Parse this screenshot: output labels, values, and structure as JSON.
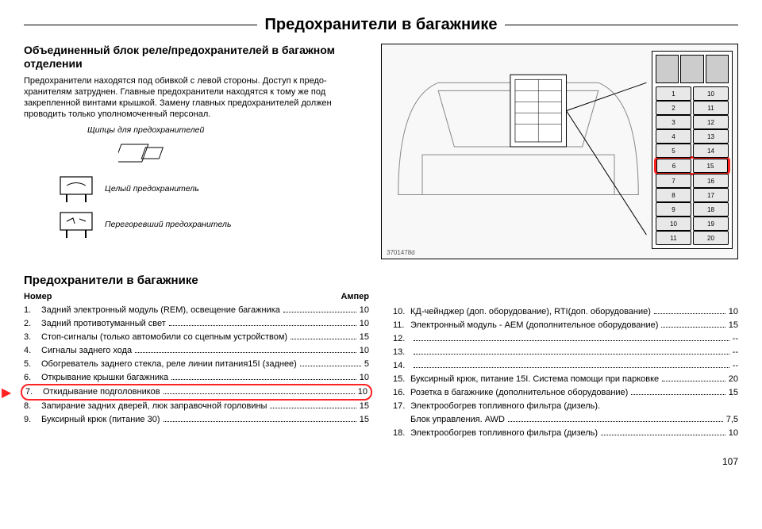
{
  "page": {
    "title": "Предохранители в багажнике",
    "number": "107"
  },
  "section1": {
    "title": "Объединенный блок реле/предохранителей в багажном отделении",
    "intro": "Предохранители находятся под обивкой с левой стороны. Доступ к предо-хранителям затруднен. Главные предохранители находятся к тому же под закрепленной винтами крышкой. Замену главных предохранителей должен проводить только уполномоченный персонал.",
    "label_tweezers": "Щипцы для предохранителей",
    "label_intact": "Целый предохранитель",
    "label_blown": "Перегоревший предохранитель",
    "diagram_caption": "3701478d"
  },
  "fusebox": {
    "header_blocks": 3,
    "highlight_row_index": 6,
    "rows": [
      [
        "1",
        "10"
      ],
      [
        "2",
        "11"
      ],
      [
        "3",
        "12"
      ],
      [
        "4",
        "13"
      ],
      [
        "5",
        "14"
      ],
      [
        "6",
        "15"
      ],
      [
        "7",
        "16"
      ],
      [
        "8",
        "17"
      ],
      [
        "9",
        "18"
      ],
      [
        "10",
        "19"
      ],
      [
        "11",
        "20"
      ]
    ]
  },
  "table": {
    "title": "Предохранители в багажнике",
    "head_num": "Номер",
    "head_amp": "Ампер",
    "highlight_index": 7,
    "left": [
      {
        "n": "1.",
        "d": "Задний электронный модуль (REM), освещение багажника",
        "a": "10"
      },
      {
        "n": "2.",
        "d": "Задний противотуманный свет",
        "a": "10"
      },
      {
        "n": "3.",
        "d": "Стоп-сигналы (только автомобили со сцепным устройством)",
        "a": "15"
      },
      {
        "n": "4.",
        "d": "Сигналы заднего хода",
        "a": "10"
      },
      {
        "n": "5.",
        "d": "Обогреватель заднего стекла, реле линии питания15I (заднее)",
        "a": "5"
      },
      {
        "n": "6.",
        "d": "Открывание крышки багажника",
        "a": "10"
      },
      {
        "n": "7.",
        "d": "Откидывание подголовников",
        "a": "10"
      },
      {
        "n": "8.",
        "d": "Запирание задних дверей, люк заправочной горловины",
        "a": "15"
      },
      {
        "n": "9.",
        "d": "Буксирный крюк (питание 30)",
        "a": "15"
      }
    ],
    "right": [
      {
        "n": "10.",
        "d": "КД-чейнджер (доп. оборудование), RTI(доп. оборудование)",
        "a": "10"
      },
      {
        "n": "11.",
        "d": "Электронный модуль - AEM (дополнительное оборудование)",
        "a": "15"
      },
      {
        "n": "12.",
        "d": "",
        "a": "--"
      },
      {
        "n": "13.",
        "d": "",
        "a": "--"
      },
      {
        "n": "14.",
        "d": "",
        "a": "--"
      },
      {
        "n": "15.",
        "d": "Буксирный крюк, питание 15I. Система помощи при парковке",
        "a": "20"
      },
      {
        "n": "16.",
        "d": "Розетка в багажнике (дополнительное оборудование)",
        "a": "15"
      },
      {
        "n": "17.",
        "d": "Электрообогрев топливного фильтра (дизель).",
        "sub": "Блок управления. AWD",
        "a": "7,5"
      },
      {
        "n": "18.",
        "d": "Электрообогрев топливного фильтра (дизель)",
        "a": "10"
      }
    ]
  }
}
